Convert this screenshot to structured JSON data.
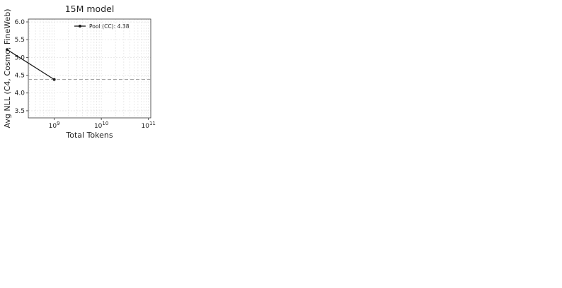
{
  "figure": {
    "ylabel": "Avg NLL (C4, Cosmo, FineWeb)",
    "xlabel": "Total Tokens",
    "yticks": [
      "3.5",
      "4.0",
      "4.5",
      "5.0",
      "5.5",
      "6.0"
    ],
    "colors": {
      "pool": "#1a1a1a",
      "r20": "#f08cb0",
      "r50": "#e23d78",
      "r100": "#c0245f",
      "r200": "#8b1a4a",
      "s100": "#6fd3e0",
      "s200": "#28b8cc",
      "s400": "#17918f",
      "s800": "#0e5a4a",
      "epoch": "#666666",
      "ref": "#9a9a9a",
      "grid": "#dddddd"
    }
  },
  "chart_data": [
    {
      "type": "line",
      "row": 0,
      "col": 0,
      "title": "15M model",
      "xlog_range": [
        8.45,
        11.05
      ],
      "xtick_exps": [
        9,
        10,
        11
      ],
      "ylim": [
        3.3,
        6.08
      ],
      "ref_y": 4.38,
      "legend_loc": "top-right",
      "series": [
        {
          "key": "pool",
          "name": "Pool (CC): 4.38",
          "x": [
            100000000.0,
            1000000000.0
          ],
          "y": [
            5.22,
            4.38
          ]
        }
      ]
    }
  ]
}
